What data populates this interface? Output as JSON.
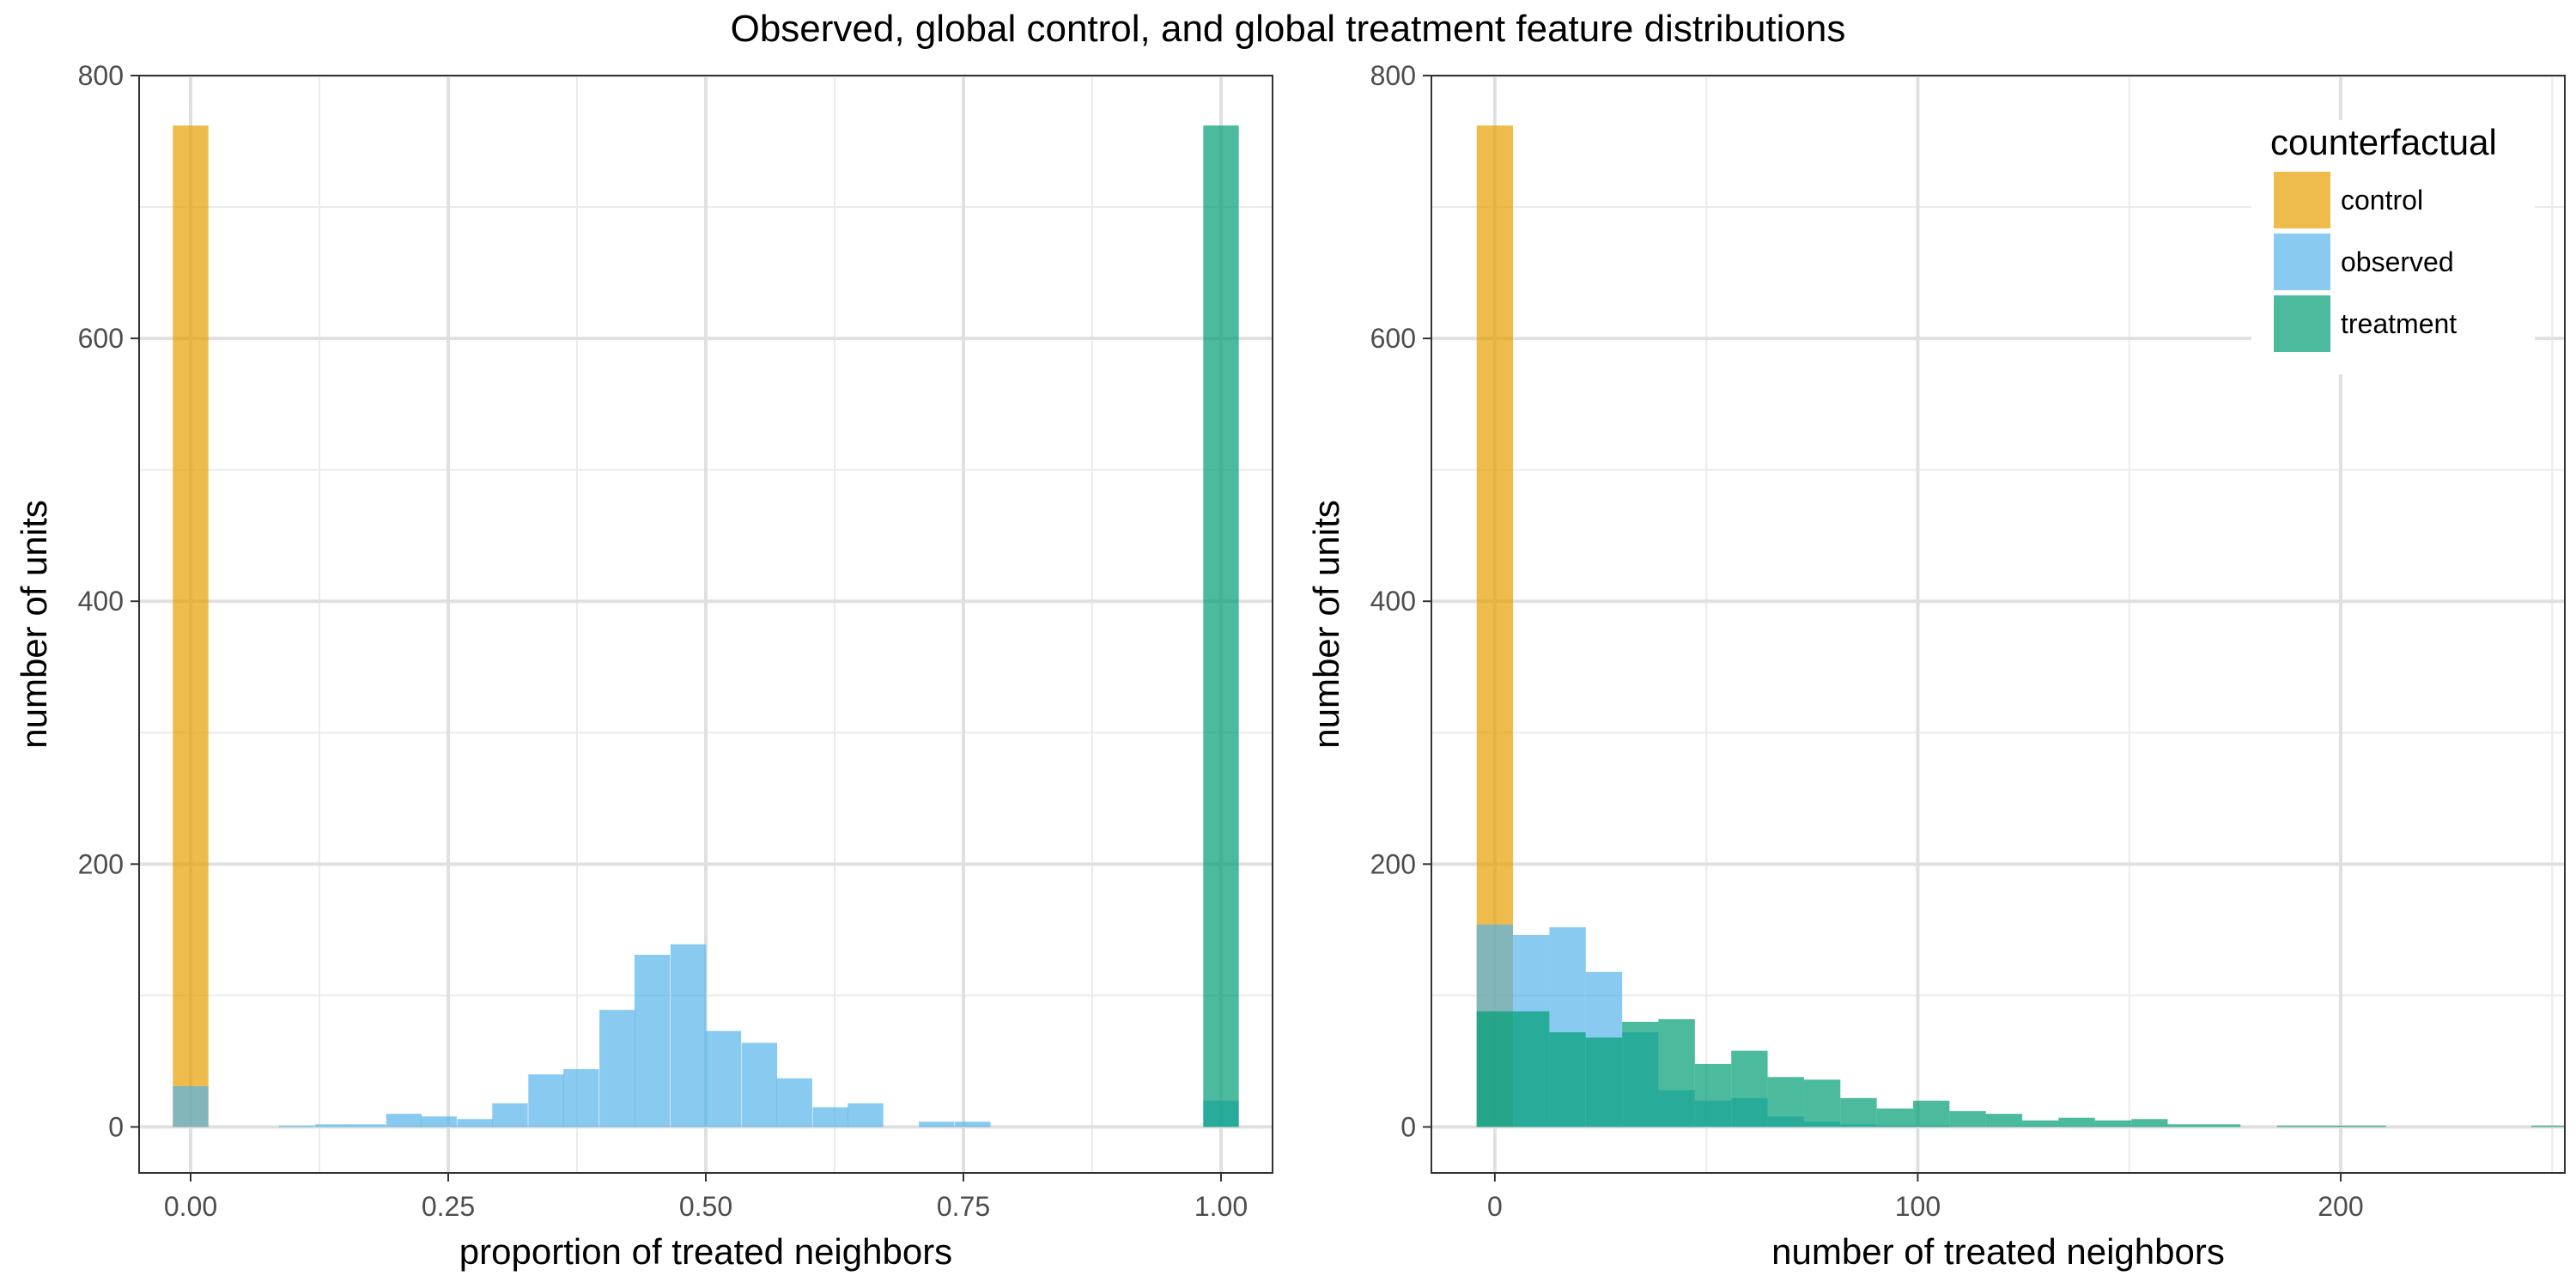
{
  "figure": {
    "title": "Observed, global control, and global treatment feature distributions"
  },
  "legend": {
    "title": "counterfactual",
    "placement": "top-right",
    "entries": [
      {
        "label": "control",
        "color": "#E69F00"
      },
      {
        "label": "observed",
        "color": "#56B4E9"
      },
      {
        "label": "treatment",
        "color": "#009E73"
      }
    ]
  },
  "colors": {
    "control": "#E69F00",
    "observed": "#56B4E9",
    "treatment": "#009E73",
    "bar_opacity": 0.7
  },
  "chart_data": [
    {
      "type": "bar",
      "subtype": "histogram",
      "xlabel": "proportion of treated neighbors",
      "ylabel": "number of units",
      "xlim": [
        -0.05,
        1.05
      ],
      "ylim": [
        -35,
        800
      ],
      "xticks": [
        0,
        0.25,
        0.5,
        0.75,
        1
      ],
      "xtick_labels": [
        "0.00",
        "0.25",
        "0.50",
        "0.75",
        "1.00"
      ],
      "yticks": [
        0,
        200,
        400,
        600,
        800
      ],
      "ytick_labels": [
        "0",
        "200",
        "400",
        "600",
        "800"
      ],
      "grid": true,
      "bin_width": 0.0345,
      "series": [
        {
          "name": "control",
          "bins": [
            {
              "x": 0,
              "count": 762
            }
          ]
        },
        {
          "name": "observed",
          "bins": [
            {
              "x": 0,
              "count": 31
            },
            {
              "x": 0.103,
              "count": 1
            },
            {
              "x": 0.138,
              "count": 2
            },
            {
              "x": 0.172,
              "count": 2
            },
            {
              "x": 0.207,
              "count": 10
            },
            {
              "x": 0.241,
              "count": 8
            },
            {
              "x": 0.276,
              "count": 6
            },
            {
              "x": 0.31,
              "count": 18
            },
            {
              "x": 0.345,
              "count": 40
            },
            {
              "x": 0.379,
              "count": 44
            },
            {
              "x": 0.414,
              "count": 89
            },
            {
              "x": 0.448,
              "count": 131
            },
            {
              "x": 0.483,
              "count": 139
            },
            {
              "x": 0.517,
              "count": 73
            },
            {
              "x": 0.552,
              "count": 64
            },
            {
              "x": 0.586,
              "count": 37
            },
            {
              "x": 0.621,
              "count": 15
            },
            {
              "x": 0.655,
              "count": 18
            },
            {
              "x": 0.724,
              "count": 4
            },
            {
              "x": 0.759,
              "count": 4
            },
            {
              "x": 1,
              "count": 20
            }
          ]
        },
        {
          "name": "treatment",
          "bins": [
            {
              "x": 1,
              "count": 762
            }
          ]
        }
      ]
    },
    {
      "type": "bar",
      "subtype": "histogram",
      "xlabel": "number of treated neighbors",
      "ylabel": "number of units",
      "xlim": [
        -15,
        253
      ],
      "ylim": [
        -35,
        800
      ],
      "xticks": [
        0,
        100,
        200
      ],
      "xtick_labels": [
        "0",
        "100",
        "200"
      ],
      "yticks": [
        0,
        200,
        400,
        600,
        800
      ],
      "ytick_labels": [
        "0",
        "200",
        "400",
        "600",
        "800"
      ],
      "grid": true,
      "bin_width": 8.6,
      "series": [
        {
          "name": "control",
          "bins": [
            {
              "x": 0,
              "count": 762
            }
          ]
        },
        {
          "name": "observed",
          "bins": [
            {
              "x": 0,
              "count": 154
            },
            {
              "x": 8.6,
              "count": 146
            },
            {
              "x": 17.2,
              "count": 152
            },
            {
              "x": 25.8,
              "count": 118
            },
            {
              "x": 34.4,
              "count": 72
            },
            {
              "x": 43,
              "count": 28
            },
            {
              "x": 51.6,
              "count": 20
            },
            {
              "x": 60.2,
              "count": 22
            },
            {
              "x": 68.8,
              "count": 8
            },
            {
              "x": 77.4,
              "count": 4
            },
            {
              "x": 86,
              "count": 2
            },
            {
              "x": 94.6,
              "count": 1
            },
            {
              "x": 103.2,
              "count": 1
            }
          ]
        },
        {
          "name": "treatment",
          "bins": [
            {
              "x": 0,
              "count": 88
            },
            {
              "x": 8.6,
              "count": 88
            },
            {
              "x": 17.2,
              "count": 72
            },
            {
              "x": 25.8,
              "count": 68
            },
            {
              "x": 34.4,
              "count": 80
            },
            {
              "x": 43,
              "count": 82
            },
            {
              "x": 51.6,
              "count": 48
            },
            {
              "x": 60.2,
              "count": 58
            },
            {
              "x": 68.8,
              "count": 38
            },
            {
              "x": 77.4,
              "count": 36
            },
            {
              "x": 86,
              "count": 22
            },
            {
              "x": 94.6,
              "count": 14
            },
            {
              "x": 103.2,
              "count": 20
            },
            {
              "x": 111.8,
              "count": 12
            },
            {
              "x": 120.4,
              "count": 10
            },
            {
              "x": 129,
              "count": 5
            },
            {
              "x": 137.6,
              "count": 7
            },
            {
              "x": 146.2,
              "count": 5
            },
            {
              "x": 154.8,
              "count": 6
            },
            {
              "x": 163.4,
              "count": 2
            },
            {
              "x": 172,
              "count": 2
            },
            {
              "x": 189.2,
              "count": 1
            },
            {
              "x": 197.8,
              "count": 1
            },
            {
              "x": 206.4,
              "count": 1
            },
            {
              "x": 249.4,
              "count": 1
            }
          ]
        }
      ]
    }
  ]
}
